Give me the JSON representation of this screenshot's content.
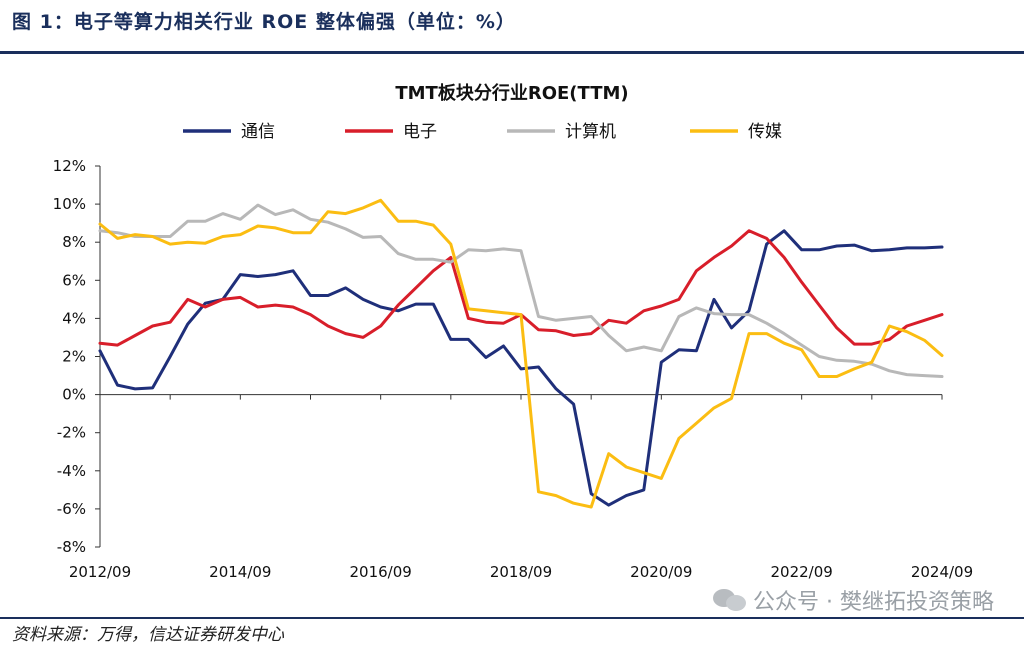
{
  "header": {
    "figure_title": "图 1：电子等算力相关行业 ROE 整体偏强（单位：%）"
  },
  "footer": {
    "source": "资料来源：万得，信达证券研发中心",
    "watermark": "公众号 · 樊继拓投资策略"
  },
  "colors": {
    "accent": "#1a2f5c",
    "axis": "#333333"
  },
  "chart_data": {
    "type": "line",
    "title": "TMT板块分行业ROE(TTM)",
    "xlabel": "",
    "ylabel": "",
    "ylim": [
      -8,
      12
    ],
    "yticks": [
      -8,
      -6,
      -4,
      -2,
      0,
      2,
      4,
      6,
      8,
      10,
      12
    ],
    "ytick_labels": [
      "-8%",
      "-6%",
      "-4%",
      "-2%",
      "0%",
      "2%",
      "4%",
      "6%",
      "8%",
      "10%",
      "12%"
    ],
    "x": [
      "2012/09",
      "2012/12",
      "2013/03",
      "2013/06",
      "2013/09",
      "2013/12",
      "2014/03",
      "2014/06",
      "2014/09",
      "2014/12",
      "2015/03",
      "2015/06",
      "2015/09",
      "2015/12",
      "2016/03",
      "2016/06",
      "2016/09",
      "2016/12",
      "2017/03",
      "2017/06",
      "2017/09",
      "2017/12",
      "2018/03",
      "2018/06",
      "2018/09",
      "2018/12",
      "2019/03",
      "2019/06",
      "2019/09",
      "2019/12",
      "2020/03",
      "2020/06",
      "2020/09",
      "2020/12",
      "2021/03",
      "2021/06",
      "2021/09",
      "2021/12",
      "2022/03",
      "2022/06",
      "2022/09",
      "2022/12",
      "2023/03",
      "2023/06",
      "2023/09",
      "2023/12",
      "2024/03",
      "2024/06",
      "2024/09"
    ],
    "xtick_labels": [
      "2012/09",
      "2014/09",
      "2016/09",
      "2018/09",
      "2020/09",
      "2022/09",
      "2024/09"
    ],
    "legend_position": "top",
    "grid": false,
    "series": [
      {
        "name": "通信",
        "color": "#1f2f7a",
        "values": [
          2.3,
          0.5,
          0.3,
          0.35,
          2.0,
          3.7,
          4.8,
          5.0,
          6.3,
          6.2,
          6.3,
          6.5,
          5.2,
          5.2,
          5.6,
          5.0,
          4.6,
          4.4,
          4.75,
          4.75,
          2.9,
          2.9,
          1.95,
          2.55,
          1.35,
          1.45,
          0.3,
          -0.5,
          -5.2,
          -5.8,
          -5.3,
          -5.0,
          1.7,
          2.35,
          2.3,
          5.0,
          3.5,
          4.4,
          7.9,
          8.6,
          7.6,
          7.6,
          7.8,
          7.85,
          7.55,
          7.6,
          7.7,
          7.7,
          7.75
        ]
      },
      {
        "name": "电子",
        "color": "#d81e2a",
        "values": [
          2.7,
          2.6,
          3.1,
          3.6,
          3.8,
          5.0,
          4.6,
          5.0,
          5.1,
          4.6,
          4.7,
          4.6,
          4.2,
          3.6,
          3.2,
          3.0,
          3.6,
          4.7,
          5.6,
          6.5,
          7.2,
          4.0,
          3.8,
          3.75,
          4.2,
          3.4,
          3.35,
          3.1,
          3.2,
          3.9,
          3.75,
          4.4,
          4.65,
          5.0,
          6.5,
          7.2,
          7.8,
          8.6,
          8.2,
          7.2,
          5.9,
          4.7,
          3.5,
          2.65,
          2.65,
          2.9,
          3.6,
          3.9,
          4.2
        ]
      },
      {
        "name": "计算机",
        "color": "#b8b8b8",
        "values": [
          8.6,
          8.5,
          8.3,
          8.3,
          8.3,
          9.1,
          9.1,
          9.5,
          9.2,
          9.95,
          9.45,
          9.7,
          9.2,
          9.05,
          8.7,
          8.25,
          8.3,
          7.4,
          7.1,
          7.1,
          6.95,
          7.6,
          7.55,
          7.65,
          7.55,
          4.1,
          3.9,
          4.0,
          4.1,
          3.1,
          2.3,
          2.5,
          2.3,
          4.1,
          4.55,
          4.25,
          4.2,
          4.2,
          3.75,
          3.2,
          2.6,
          2.0,
          1.8,
          1.75,
          1.6,
          1.25,
          1.05,
          1.0,
          0.95
        ]
      },
      {
        "name": "传媒",
        "color": "#fbbd12",
        "values": [
          8.95,
          8.2,
          8.4,
          8.3,
          7.9,
          8.0,
          7.95,
          8.3,
          8.4,
          8.85,
          8.75,
          8.5,
          8.5,
          9.6,
          9.5,
          9.8,
          10.2,
          9.1,
          9.1,
          8.9,
          7.9,
          4.5,
          4.4,
          4.3,
          4.2,
          -5.1,
          -5.3,
          -5.7,
          -5.9,
          -3.1,
          -3.8,
          -4.1,
          -4.4,
          -2.3,
          -1.5,
          -0.7,
          -0.2,
          3.2,
          3.2,
          2.7,
          2.35,
          0.95,
          0.95,
          1.35,
          1.7,
          3.6,
          3.3,
          2.85,
          2.05
        ]
      }
    ]
  }
}
